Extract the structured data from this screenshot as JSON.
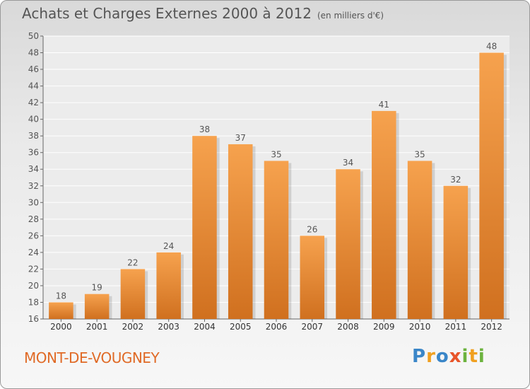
{
  "chart_data": {
    "type": "bar",
    "title": "Achats et Charges Externes 2000 à 2012",
    "unit": "(en milliers d'€)",
    "categories": [
      "2000",
      "2001",
      "2002",
      "2003",
      "2004",
      "2005",
      "2006",
      "2007",
      "2008",
      "2009",
      "2010",
      "2011",
      "2012"
    ],
    "values": [
      18,
      19,
      22,
      24,
      38,
      37,
      35,
      26,
      34,
      41,
      35,
      32,
      48
    ],
    "ylim": [
      16,
      50
    ],
    "yticks": [
      16,
      18,
      20,
      22,
      24,
      26,
      28,
      30,
      32,
      34,
      36,
      38,
      40,
      42,
      44,
      46,
      48,
      50
    ],
    "grid": true,
    "bar_color_top": "#f6a24e",
    "bar_color_bottom": "#d0701f",
    "xlabel": "",
    "ylabel": ""
  },
  "location": "MONT-DE-VOUGNEY",
  "logo": {
    "letters": [
      {
        "ch": "P",
        "color": "#3a86c8"
      },
      {
        "ch": "r",
        "color": "#f0a020"
      },
      {
        "ch": "o",
        "color": "#3a86c8"
      },
      {
        "ch": "x",
        "color": "#e8552a"
      },
      {
        "ch": "i",
        "color": "#6cb33e"
      },
      {
        "ch": "t",
        "color": "#f0a020"
      },
      {
        "ch": "i",
        "color": "#6cb33e"
      }
    ]
  }
}
